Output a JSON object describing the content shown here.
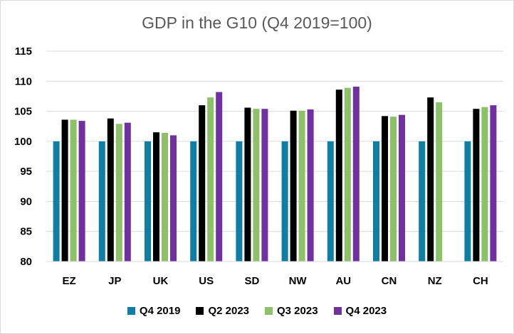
{
  "chart_data": {
    "type": "bar",
    "title": "GDP in the G10 (Q4 2019=100)",
    "categories": [
      "EZ",
      "JP",
      "UK",
      "US",
      "SD",
      "NW",
      "AU",
      "CN",
      "NZ",
      "CH"
    ],
    "series": [
      {
        "name": "Q4 2019",
        "color": "#0e7ea4",
        "values": [
          100,
          100,
          100,
          100,
          100,
          100,
          100,
          100,
          100,
          100
        ]
      },
      {
        "name": "Q2 2023",
        "color": "#000000",
        "values": [
          103.6,
          103.8,
          101.5,
          106.0,
          105.6,
          105.1,
          108.6,
          104.2,
          107.3,
          105.4
        ]
      },
      {
        "name": "Q3 2023",
        "color": "#8cc168",
        "values": [
          103.6,
          102.9,
          101.4,
          107.3,
          105.4,
          105.1,
          108.9,
          104.1,
          106.5,
          105.7
        ]
      },
      {
        "name": "Q4 2023",
        "color": "#7030a0",
        "values": [
          103.4,
          103.1,
          101.0,
          108.2,
          105.4,
          105.3,
          109.1,
          104.4,
          null,
          106.0
        ]
      }
    ],
    "yticks": [
      80,
      85,
      90,
      95,
      100,
      105,
      110,
      115
    ],
    "ylim": [
      80,
      115
    ],
    "grid": true,
    "legend": "bottom"
  }
}
